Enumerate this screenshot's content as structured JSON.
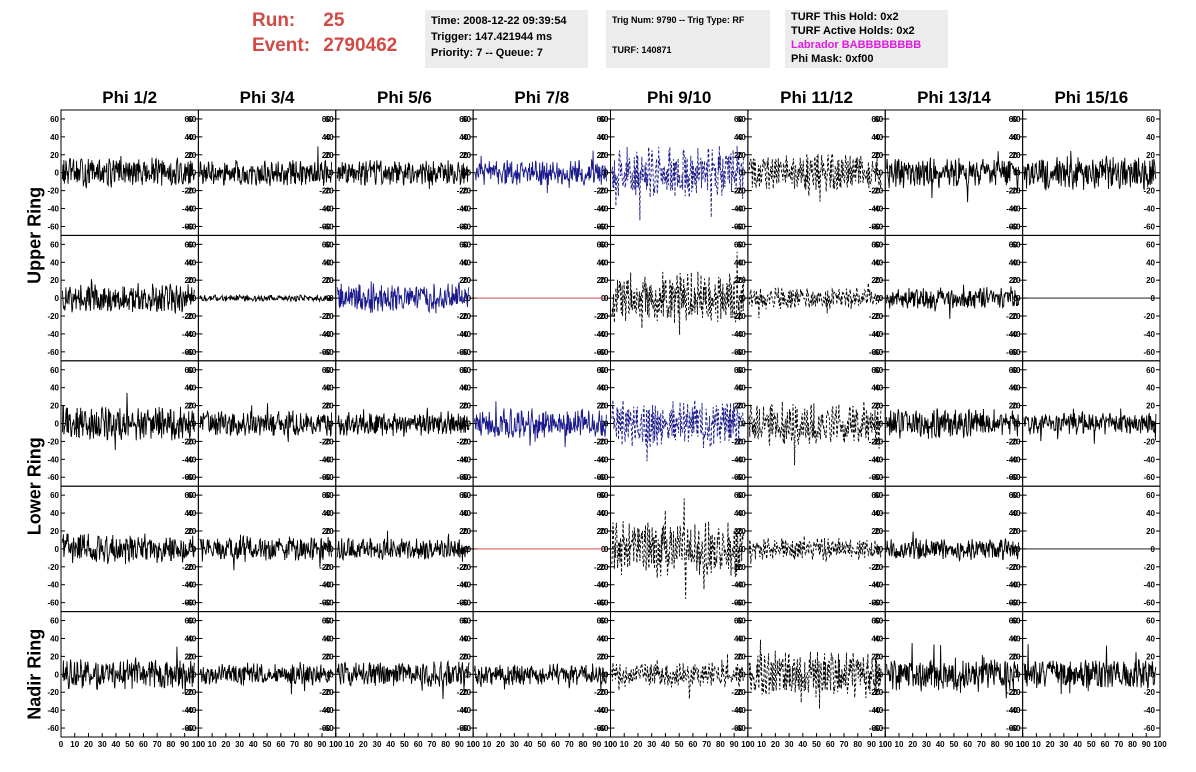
{
  "header": {
    "run_label": "Run:",
    "run_value": "25",
    "event_label": "Event:",
    "event_value": "2790462",
    "time": "Time: 2008-12-22 09:39:54",
    "trigger": "Trigger: 147.421944 ms",
    "priority": "Priority: 7 -- Queue: 7",
    "trig_num": "Trig Num: 9790 -- Trig Type: RF",
    "turf": "TURF: 140871",
    "turf_hold": "TURF This Hold: 0x2",
    "turf_active": "TURF Active Holds: 0x2",
    "labrador": "Labrador BABBBBBBBB",
    "phi_mask": "Phi Mask: 0xf00"
  },
  "colors": {
    "run_text": "#d24a45",
    "labrador_text": "#e01be0",
    "info_bg": "#ececec",
    "trace_black": "#000000",
    "trace_blue": "#1a1a8c",
    "trace_red": "#cc3333"
  },
  "chart_data": {
    "type": "line",
    "columns": [
      "Phi 1/2",
      "Phi 3/4",
      "Phi 5/6",
      "Phi 7/8",
      "Phi 9/10",
      "Phi 11/12",
      "Phi 13/14",
      "Phi 15/16"
    ],
    "rows": [
      "Upper Ring",
      "Lower Ring",
      "Nadir Ring"
    ],
    "y_ticks": [
      "60",
      "40",
      "20",
      "0",
      "-20",
      "-40",
      "-60"
    ],
    "x_ticks": [
      "0",
      "10",
      "20",
      "30",
      "40",
      "50",
      "60",
      "70",
      "80",
      "90",
      "100"
    ],
    "xlim": [
      0,
      100
    ],
    "ylim": [
      -70,
      70
    ],
    "panels": [
      {
        "row": 0,
        "col": 0,
        "amp": 14,
        "color": "black",
        "style": "solid"
      },
      {
        "row": 0,
        "col": 1,
        "amp": 12,
        "color": "black",
        "style": "solid"
      },
      {
        "row": 0,
        "col": 2,
        "amp": 12,
        "color": "black",
        "style": "solid"
      },
      {
        "row": 0,
        "col": 3,
        "amp": 12,
        "color": "blue",
        "style": "solid"
      },
      {
        "row": 0,
        "col": 4,
        "amp": 24,
        "color": "blue",
        "style": "dashed"
      },
      {
        "row": 0,
        "col": 5,
        "amp": 18,
        "color": "black",
        "style": "dashed"
      },
      {
        "row": 0,
        "col": 6,
        "amp": 14,
        "color": "black",
        "style": "solid"
      },
      {
        "row": 0,
        "col": 7,
        "amp": 16,
        "color": "black",
        "style": "solid"
      },
      {
        "row": 1,
        "col": 0,
        "amp": 14,
        "color": "black",
        "style": "solid"
      },
      {
        "row": 1,
        "col": 1,
        "amp": 3,
        "color": "black",
        "style": "solid"
      },
      {
        "row": 1,
        "col": 2,
        "amp": 14,
        "color": "blue",
        "style": "solid"
      },
      {
        "row": 1,
        "col": 3,
        "amp": 0,
        "color": "red",
        "style": "solid"
      },
      {
        "row": 1,
        "col": 4,
        "amp": 24,
        "color": "black",
        "style": "dashed"
      },
      {
        "row": 1,
        "col": 5,
        "amp": 10,
        "color": "black",
        "style": "dashed"
      },
      {
        "row": 1,
        "col": 6,
        "amp": 10,
        "color": "black",
        "style": "solid"
      },
      {
        "row": 1,
        "col": 7,
        "amp": 0,
        "color": "black",
        "style": "solid"
      },
      {
        "row": 2,
        "col": 0,
        "amp": 16,
        "color": "black",
        "style": "solid"
      },
      {
        "row": 2,
        "col": 1,
        "amp": 12,
        "color": "black",
        "style": "solid"
      },
      {
        "row": 2,
        "col": 2,
        "amp": 12,
        "color": "black",
        "style": "solid"
      },
      {
        "row": 2,
        "col": 3,
        "amp": 14,
        "color": "blue",
        "style": "solid"
      },
      {
        "row": 2,
        "col": 4,
        "amp": 22,
        "color": "blue",
        "style": "dashed"
      },
      {
        "row": 2,
        "col": 5,
        "amp": 20,
        "color": "black",
        "style": "dashed"
      },
      {
        "row": 2,
        "col": 6,
        "amp": 14,
        "color": "black",
        "style": "solid"
      },
      {
        "row": 2,
        "col": 7,
        "amp": 10,
        "color": "black",
        "style": "solid"
      },
      {
        "row": 3,
        "col": 0,
        "amp": 14,
        "color": "black",
        "style": "solid"
      },
      {
        "row": 3,
        "col": 1,
        "amp": 12,
        "color": "black",
        "style": "solid"
      },
      {
        "row": 3,
        "col": 2,
        "amp": 10,
        "color": "black",
        "style": "solid"
      },
      {
        "row": 3,
        "col": 3,
        "amp": 0,
        "color": "red",
        "style": "solid"
      },
      {
        "row": 3,
        "col": 4,
        "amp": 26,
        "color": "black",
        "style": "dashed"
      },
      {
        "row": 3,
        "col": 5,
        "amp": 10,
        "color": "black",
        "style": "dashed"
      },
      {
        "row": 3,
        "col": 6,
        "amp": 10,
        "color": "black",
        "style": "solid"
      },
      {
        "row": 3,
        "col": 7,
        "amp": 0,
        "color": "black",
        "style": "solid"
      },
      {
        "row": 4,
        "col": 0,
        "amp": 14,
        "color": "black",
        "style": "solid"
      },
      {
        "row": 4,
        "col": 1,
        "amp": 10,
        "color": "black",
        "style": "solid"
      },
      {
        "row": 4,
        "col": 2,
        "amp": 12,
        "color": "black",
        "style": "solid"
      },
      {
        "row": 4,
        "col": 3,
        "amp": 10,
        "color": "black",
        "style": "solid"
      },
      {
        "row": 4,
        "col": 4,
        "amp": 12,
        "color": "black",
        "style": "dashed"
      },
      {
        "row": 4,
        "col": 5,
        "amp": 22,
        "color": "black",
        "style": "dashed"
      },
      {
        "row": 4,
        "col": 6,
        "amp": 16,
        "color": "black",
        "style": "solid"
      },
      {
        "row": 4,
        "col": 7,
        "amp": 14,
        "color": "black",
        "style": "solid"
      }
    ]
  }
}
